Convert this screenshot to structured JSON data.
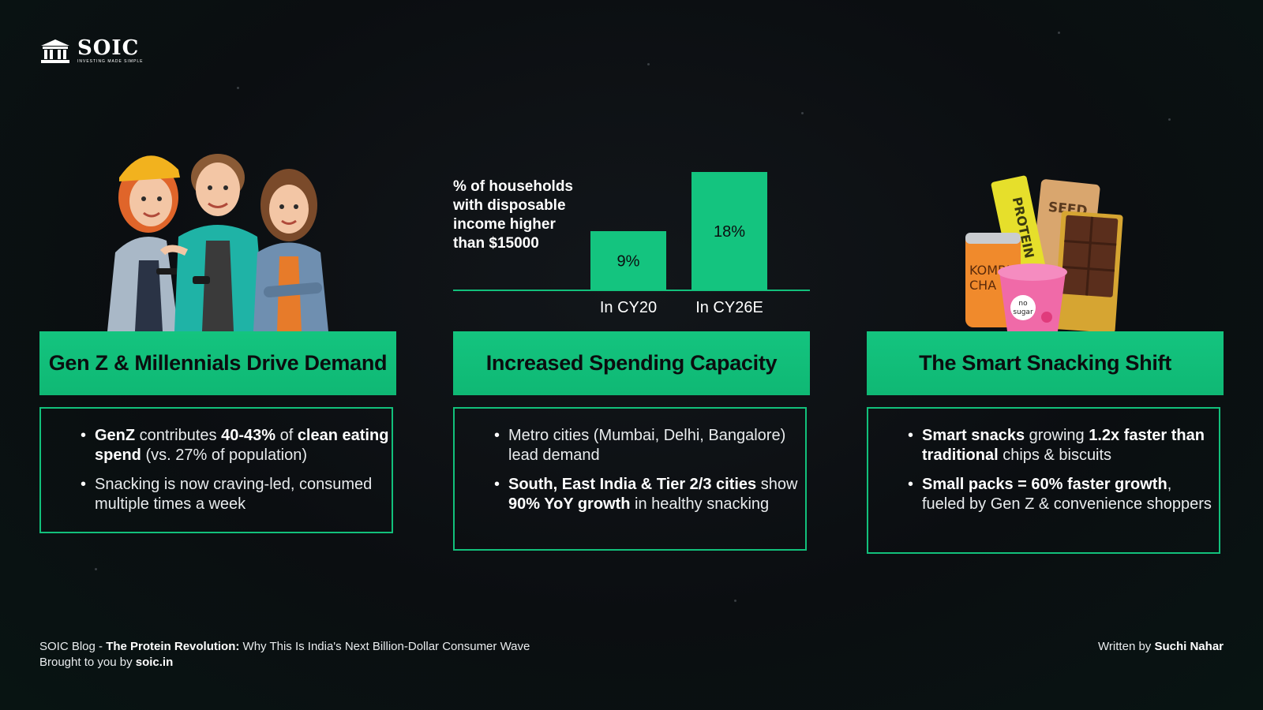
{
  "brand": {
    "name": "SOIC",
    "tagline": "INVESTING MADE SIMPLE"
  },
  "columns": [
    {
      "heading": "Gen Z & Millennials Drive Demand",
      "illustration": "genz-group-illustration",
      "bullets": [
        [
          {
            "t": "GenZ",
            "b": true
          },
          {
            "t": " contributes "
          },
          {
            "t": "40-43%",
            "b": true
          },
          {
            "t": " of "
          },
          {
            "t": "clean eating spend",
            "b": true
          },
          {
            "t": " (vs. 27% of population)"
          }
        ],
        [
          {
            "t": "Snacking is now craving-led, consumed multiple times a week"
          }
        ]
      ]
    },
    {
      "heading": "Increased Spending Capacity",
      "bullets": [
        [
          {
            "t": "Metro cities (Mumbai, Delhi, Bangalore) lead demand"
          }
        ],
        [
          {
            "t": "South, East India & Tier 2/3 cities",
            "b": true
          },
          {
            "t": " show "
          },
          {
            "t": "90% YoY growth",
            "b": true
          },
          {
            "t": " in healthy snacking"
          }
        ]
      ]
    },
    {
      "heading": "The Smart Snacking Shift",
      "illustration": "snacks-illustration",
      "bullets": [
        [
          {
            "t": "Smart snacks",
            "b": true
          },
          {
            "t": " growing "
          },
          {
            "t": "1.2x faster than traditional",
            "b": true
          },
          {
            "t": " chips & biscuits"
          }
        ],
        [
          {
            "t": "Small packs = 60% faster growth",
            "b": true
          },
          {
            "t": ", fueled by Gen Z & convenience shoppers"
          }
        ]
      ]
    }
  ],
  "snack_labels": {
    "bar": "PROTEIN",
    "pouch": "SEED",
    "can_line1": "KOMBU",
    "can_line2": "CHA",
    "cup_line1": "no",
    "cup_line2": "sugar"
  },
  "chart_data": {
    "type": "bar",
    "title": "% of households with disposable income higher than $15000",
    "categories": [
      "In CY20",
      "In CY26E"
    ],
    "values": [
      9,
      18
    ],
    "value_labels": [
      "9%",
      "18%"
    ],
    "ylim": [
      0,
      18
    ],
    "color": "#14c47f",
    "grid": false
  },
  "footer": {
    "blog_prefix": "SOIC Blog - ",
    "blog_title": "The Protein Revolution:",
    "blog_subtitle": " Why This Is India's Next Billion-Dollar Consumer Wave",
    "brought_prefix": "Brought to you by ",
    "brought_site": "soic.in",
    "written_prefix": "Written by ",
    "author": "Suchi Nahar"
  },
  "colors": {
    "accent": "#14c47f",
    "background": "#0b0e11",
    "text": "#ffffff"
  }
}
